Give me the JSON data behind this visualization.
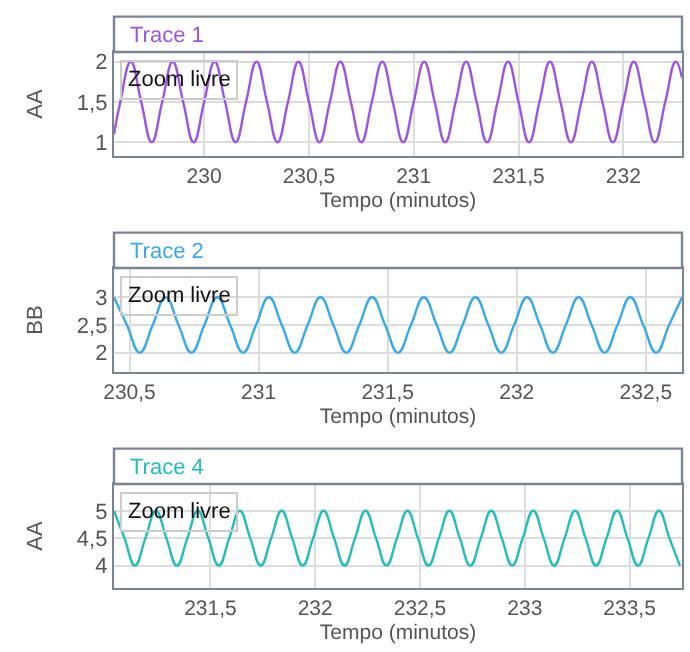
{
  "chart_data": [
    {
      "type": "line",
      "title": "Trace 1",
      "xlabel": "Tempo (minutos)",
      "ylabel": "AA",
      "annotations": [
        "Zoom livre"
      ],
      "grid": true,
      "marker": "none",
      "xlim": [
        229.57,
        232.28
      ],
      "xticks": [
        230,
        {
          "value": 230.5,
          "label": "230,5"
        },
        231,
        {
          "value": 231.5,
          "label": "231,5"
        },
        232
      ],
      "ylim": [
        0.83,
        2.12
      ],
      "yticks": [
        1,
        {
          "value": 1.5,
          "label": "1,5"
        },
        2
      ],
      "series": [
        {
          "color": "#9b55e0",
          "x": [
            229.57,
            229.6,
            229.65,
            229.7,
            229.75,
            229.8,
            229.85,
            229.9,
            229.95,
            230,
            230.05,
            230.1,
            230.15,
            230.2,
            230.25,
            230.3,
            230.35,
            230.4,
            230.45,
            230.5,
            230.55,
            230.6,
            230.65,
            230.7,
            230.75,
            230.8,
            230.85,
            230.9,
            230.95,
            231,
            231.05,
            231.1,
            231.15,
            231.2,
            231.25,
            231.3,
            231.35,
            231.4,
            231.45,
            231.5,
            231.55,
            231.6,
            231.65,
            231.7,
            231.75,
            231.8,
            231.85,
            231.9,
            231.95,
            232,
            232.05,
            232.1,
            232.15,
            232.2,
            232.25,
            232.28
          ],
          "values": [
            1.1,
            1.5,
            2,
            1.5,
            1,
            1.5,
            2,
            1.5,
            1,
            1.5,
            2,
            1.5,
            1,
            1.5,
            2,
            1.5,
            1,
            1.5,
            2,
            1.5,
            1,
            1.5,
            2,
            1.5,
            1,
            1.5,
            2,
            1.5,
            1,
            1.5,
            2,
            1.5,
            1,
            1.5,
            2,
            1.5,
            1,
            1.5,
            2,
            1.5,
            1,
            1.5,
            2,
            1.5,
            1,
            1.5,
            2,
            1.5,
            1,
            1.5,
            2,
            1.5,
            1,
            1.5,
            2,
            1.8
          ]
        }
      ]
    },
    {
      "type": "line",
      "title": "Trace 2",
      "xlabel": "Tempo (minutos)",
      "ylabel": "BB",
      "annotations": [
        "Zoom livre"
      ],
      "grid": true,
      "marker": "none",
      "xlim": [
        230.44,
        232.64
      ],
      "xticks": [
        {
          "value": 230.5,
          "label": "230,5"
        },
        231,
        {
          "value": 231.5,
          "label": "231,5"
        },
        232,
        {
          "value": 232.5,
          "label": "232,5"
        }
      ],
      "ylim": [
        1.65,
        3.53
      ],
      "yticks": [
        2,
        {
          "value": 2.5,
          "label": "2,5"
        },
        3
      ],
      "series": [
        {
          "color": "#3aa9e6",
          "x": [
            230.44,
            230.49,
            230.54,
            230.59,
            230.64,
            230.69,
            230.74,
            230.79,
            230.84,
            230.89,
            230.94,
            230.99,
            231.04,
            231.09,
            231.14,
            231.19,
            231.24,
            231.29,
            231.34,
            231.39,
            231.44,
            231.49,
            231.54,
            231.59,
            231.64,
            231.69,
            231.74,
            231.79,
            231.84,
            231.89,
            231.94,
            231.99,
            232.04,
            232.09,
            232.14,
            232.19,
            232.24,
            232.29,
            232.34,
            232.39,
            232.44,
            232.49,
            232.54,
            232.59,
            232.64
          ],
          "values": [
            3,
            2.5,
            2,
            2.5,
            3,
            2.5,
            2,
            2.5,
            3,
            2.5,
            2,
            2.5,
            3,
            2.5,
            2,
            2.5,
            3,
            2.5,
            2,
            2.5,
            3,
            2.5,
            2,
            2.5,
            3,
            2.5,
            2,
            2.5,
            3,
            2.5,
            2,
            2.5,
            3,
            2.5,
            2,
            2.5,
            3,
            2.5,
            2,
            2.5,
            3,
            2.5,
            2,
            2.5,
            3
          ]
        }
      ]
    },
    {
      "type": "line",
      "title": "Trace 4",
      "xlabel": "Tempo (minutos)",
      "ylabel": "AA",
      "annotations": [
        "Zoom livre"
      ],
      "grid": true,
      "marker": "none",
      "xlim": [
        231.04,
        233.75
      ],
      "xticks": [
        {
          "value": 231.5,
          "label": "231,5"
        },
        232,
        {
          "value": 232.5,
          "label": "232,5"
        },
        233,
        {
          "value": 233.5,
          "label": "233,5"
        }
      ],
      "ylim": [
        3.59,
        5.49
      ],
      "yticks": [
        4,
        {
          "value": 4.5,
          "label": "4,5"
        },
        5
      ],
      "series": [
        {
          "color": "#25bcbc",
          "x": [
            231.04,
            231.09,
            231.14,
            231.19,
            231.24,
            231.29,
            231.34,
            231.39,
            231.44,
            231.49,
            231.54,
            231.59,
            231.64,
            231.69,
            231.74,
            231.79,
            231.84,
            231.89,
            231.94,
            231.99,
            232.04,
            232.09,
            232.14,
            232.19,
            232.24,
            232.29,
            232.34,
            232.39,
            232.44,
            232.49,
            232.54,
            232.59,
            232.64,
            232.69,
            232.74,
            232.79,
            232.84,
            232.89,
            232.94,
            232.99,
            233.04,
            233.09,
            233.14,
            233.19,
            233.24,
            233.29,
            233.34,
            233.39,
            233.44,
            233.49,
            233.54,
            233.59,
            233.64,
            233.69,
            233.74
          ],
          "values": [
            5,
            4.5,
            4,
            4.5,
            5,
            4.5,
            4,
            4.5,
            5,
            4.5,
            4,
            4.5,
            5,
            4.5,
            4,
            4.5,
            5,
            4.5,
            4,
            4.5,
            5,
            4.5,
            4,
            4.5,
            5,
            4.5,
            4,
            4.5,
            5,
            4.5,
            4,
            4.5,
            5,
            4.5,
            4,
            4.5,
            5,
            4.5,
            4,
            4.5,
            5,
            4.5,
            4,
            4.5,
            5,
            4.5,
            4,
            4.5,
            5,
            4.5,
            4,
            4.5,
            5,
            4.5,
            4
          ]
        }
      ]
    }
  ]
}
